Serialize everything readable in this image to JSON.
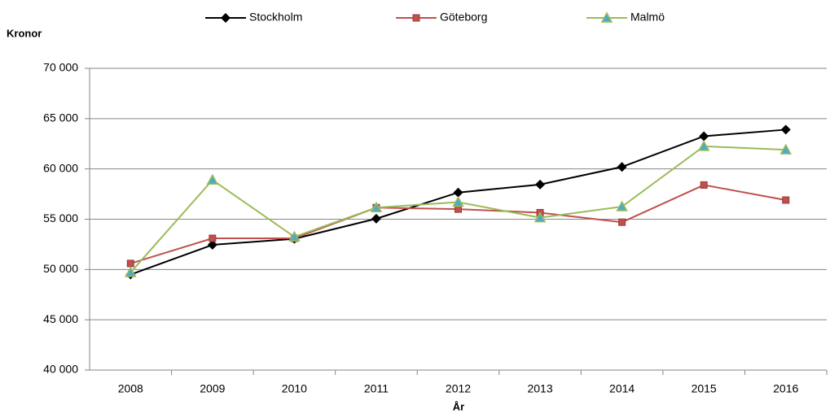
{
  "chart_data": {
    "type": "line",
    "y_label": "Kronor",
    "x_label": "År",
    "categories": [
      "2008",
      "2009",
      "2010",
      "2011",
      "2012",
      "2013",
      "2014",
      "2015",
      "2016"
    ],
    "series": [
      {
        "name": "Stockholm",
        "color": "#000000",
        "marker": "diamond",
        "values": [
          49500,
          52450,
          53050,
          55050,
          57650,
          58450,
          60200,
          63250,
          63900
        ]
      },
      {
        "name": "Göteborg",
        "color": "#c0504d",
        "marker": "square",
        "values": [
          50600,
          53100,
          53100,
          56150,
          56000,
          55650,
          54700,
          58400,
          56900
        ]
      },
      {
        "name": "Malmö",
        "color": "#9bbb59",
        "marker": "triangle",
        "values": [
          49700,
          58900,
          53250,
          56150,
          56700,
          55150,
          56250,
          62250,
          61900
        ]
      }
    ],
    "ylim": [
      40000,
      70000
    ],
    "yticks": [
      {
        "value": 40000,
        "label": "40 000"
      },
      {
        "value": 45000,
        "label": "45 000"
      },
      {
        "value": 50000,
        "label": "50 000"
      },
      {
        "value": 55000,
        "label": "55 000"
      },
      {
        "value": 60000,
        "label": "60 000"
      },
      {
        "value": 65000,
        "label": "65 000"
      },
      {
        "value": 70000,
        "label": "70 000"
      }
    ],
    "grid": true,
    "legend": "top"
  }
}
